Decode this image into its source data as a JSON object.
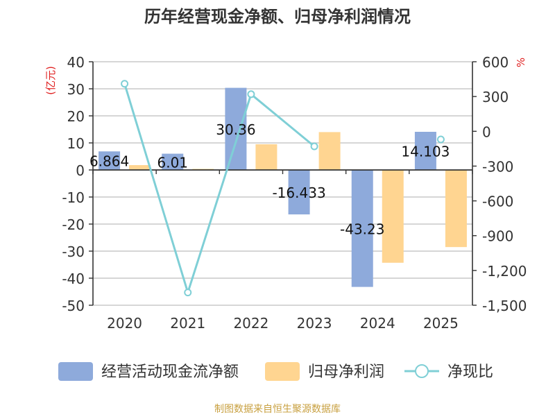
{
  "chart_data": {
    "type": "bar+line",
    "title": "历年经营现金净额、归母净利润情况",
    "categories": [
      "2020",
      "2021",
      "2022",
      "2023",
      "2024",
      "2025"
    ],
    "series": [
      {
        "name": "经营活动现金流净额",
        "kind": "bar",
        "axis": "left",
        "color": "#8eaadb",
        "values": [
          6.864,
          6.01,
          30.36,
          -16.433,
          -43.23,
          14.103
        ],
        "labels": [
          "6.864",
          "6.01",
          "30.36",
          "-16.433",
          "-43.23",
          "14.103"
        ]
      },
      {
        "name": "归母净利润",
        "kind": "bar",
        "axis": "left",
        "color": "#ffd591",
        "values": [
          1.8,
          0.4,
          9.5,
          14.0,
          -34.3,
          -28.5
        ]
      },
      {
        "name": "净现比",
        "kind": "line",
        "axis": "right",
        "color": "#7fcfd6",
        "values": [
          410,
          -1390,
          320,
          -130,
          null,
          -70
        ]
      }
    ],
    "left_axis": {
      "label": "(亿元)",
      "min": -50,
      "max": 40,
      "ticks": [
        -50,
        -40,
        -30,
        -20,
        -10,
        0,
        10,
        20,
        30,
        40
      ]
    },
    "right_axis": {
      "label": "%",
      "min": -1500,
      "max": 600,
      "ticks": [
        -1500,
        -1200,
        -900,
        -600,
        -300,
        0,
        300,
        600
      ],
      "tick_labels": [
        "-1,500",
        "-1,200",
        "-900",
        "-600",
        "-300",
        "0",
        "300",
        "600"
      ]
    },
    "legend": [
      "经营活动现金流净额",
      "归母净利润",
      "净现比"
    ],
    "legend_position": "bottom",
    "source": "制图数据来自恒生聚源数据库",
    "axis_label_color": "#e02020",
    "source_color": "#c8a040"
  }
}
